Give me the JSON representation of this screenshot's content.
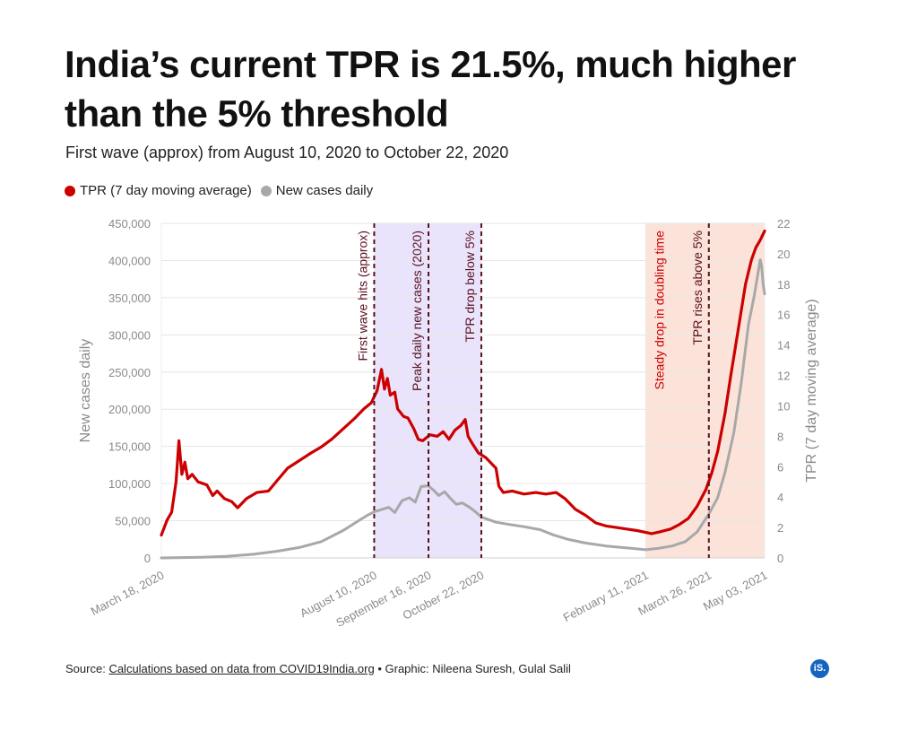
{
  "header": {
    "title": "India’s current TPR is 21.5%, much higher than the 5% threshold",
    "subtitle": "First wave (approx) from August 10, 2020 to October 22, 2020"
  },
  "legend": {
    "tpr_label": "TPR (7 day moving average)",
    "cases_label": "New cases daily"
  },
  "colors": {
    "tpr": "#cc0000",
    "cases": "#a8a8a8",
    "first_wave_band": "#e9e4fb",
    "second_wave_band": "#fbe3da",
    "event_line": "#5a1020"
  },
  "footer": {
    "source_prefix": "Source:",
    "source_link": "Calculations based on data from COVID19India.org",
    "credit": "• Graphic: Nileena Suresh, Gulal Salil",
    "logo": "iS."
  },
  "chart_data": {
    "type": "line",
    "x_type": "date",
    "x_range": [
      "2020-03-18",
      "2021-05-03"
    ],
    "x_ticks": [
      {
        "date": "2020-03-18",
        "label": "March 18, 2020"
      },
      {
        "date": "2020-08-10",
        "label": "August 10, 2020"
      },
      {
        "date": "2020-09-16",
        "label": "September 16, 2020"
      },
      {
        "date": "2020-10-22",
        "label": "October 22, 2020"
      },
      {
        "date": "2021-02-11",
        "label": "February 11, 2021"
      },
      {
        "date": "2021-03-26",
        "label": "March 26, 2021"
      },
      {
        "date": "2021-05-03",
        "label": "May 03, 2021"
      }
    ],
    "y_left": {
      "label": "New cases daily",
      "range": [
        0,
        450000
      ],
      "ticks": [
        0,
        50000,
        100000,
        150000,
        200000,
        250000,
        300000,
        350000,
        400000,
        450000
      ],
      "tick_labels": [
        "0",
        "50,000",
        "100,000",
        "150,000",
        "200,000",
        "250,000",
        "300,000",
        "350,000",
        "400,000",
        "450,000"
      ]
    },
    "y_right": {
      "label": "TPR (7 day moving average)",
      "range": [
        0,
        22
      ],
      "ticks": [
        0,
        2,
        4,
        6,
        8,
        10,
        12,
        14,
        16,
        18,
        20,
        22
      ]
    },
    "grid": true,
    "legend_position": "top-left",
    "bands": [
      {
        "start": "2020-08-10",
        "end": "2020-10-22",
        "color_key": "first_wave_band"
      },
      {
        "start": "2021-02-11",
        "end": "2021-05-03",
        "color_key": "second_wave_band"
      }
    ],
    "annotations": [
      {
        "date": "2020-08-10",
        "text": "First wave hits (approx)",
        "color": "#5a1020"
      },
      {
        "date": "2020-09-16",
        "text": "Peak daily new cases (2020)",
        "color": "#5a1020"
      },
      {
        "date": "2020-10-22",
        "text": "TPR drop below 5%",
        "color": "#5a1020"
      },
      {
        "date": "2021-02-11",
        "text": "Steady drop in doubling time",
        "color": "#cc0000",
        "no_line": true
      },
      {
        "date": "2021-03-26",
        "text": "TPR rises above 5%",
        "color": "#5a1020"
      }
    ],
    "series": [
      {
        "name": "TPR (7 day moving average)",
        "axis": "right",
        "color_key": "tpr",
        "points": [
          [
            "2020-03-18",
            1.5
          ],
          [
            "2020-03-22",
            2.5
          ],
          [
            "2020-03-25",
            3.0
          ],
          [
            "2020-03-28",
            5.0
          ],
          [
            "2020-03-30",
            7.7
          ],
          [
            "2020-04-01",
            5.5
          ],
          [
            "2020-04-03",
            6.3
          ],
          [
            "2020-04-05",
            5.2
          ],
          [
            "2020-04-08",
            5.5
          ],
          [
            "2020-04-12",
            5.0
          ],
          [
            "2020-04-18",
            4.8
          ],
          [
            "2020-04-22",
            4.1
          ],
          [
            "2020-04-25",
            4.4
          ],
          [
            "2020-04-30",
            3.9
          ],
          [
            "2020-05-05",
            3.7
          ],
          [
            "2020-05-09",
            3.3
          ],
          [
            "2020-05-15",
            3.9
          ],
          [
            "2020-05-22",
            4.3
          ],
          [
            "2020-05-30",
            4.4
          ],
          [
            "2020-06-05",
            5.1
          ],
          [
            "2020-06-12",
            5.9
          ],
          [
            "2020-06-20",
            6.4
          ],
          [
            "2020-06-28",
            6.9
          ],
          [
            "2020-07-05",
            7.3
          ],
          [
            "2020-07-12",
            7.8
          ],
          [
            "2020-07-20",
            8.5
          ],
          [
            "2020-07-28",
            9.2
          ],
          [
            "2020-08-03",
            9.8
          ],
          [
            "2020-08-08",
            10.2
          ],
          [
            "2020-08-12",
            11.0
          ],
          [
            "2020-08-15",
            12.4
          ],
          [
            "2020-08-17",
            11.1
          ],
          [
            "2020-08-19",
            11.8
          ],
          [
            "2020-08-21",
            10.7
          ],
          [
            "2020-08-24",
            10.9
          ],
          [
            "2020-08-26",
            9.8
          ],
          [
            "2020-08-30",
            9.3
          ],
          [
            "2020-09-02",
            9.2
          ],
          [
            "2020-09-06",
            8.5
          ],
          [
            "2020-09-09",
            7.8
          ],
          [
            "2020-09-12",
            7.7
          ],
          [
            "2020-09-17",
            8.1
          ],
          [
            "2020-09-22",
            8.0
          ],
          [
            "2020-09-26",
            8.3
          ],
          [
            "2020-09-30",
            7.8
          ],
          [
            "2020-10-04",
            8.4
          ],
          [
            "2020-10-08",
            8.7
          ],
          [
            "2020-10-11",
            9.1
          ],
          [
            "2020-10-13",
            8.0
          ],
          [
            "2020-10-16",
            7.5
          ],
          [
            "2020-10-20",
            6.9
          ],
          [
            "2020-10-25",
            6.6
          ],
          [
            "2020-10-29",
            6.2
          ],
          [
            "2020-11-01",
            5.9
          ],
          [
            "2020-11-03",
            4.7
          ],
          [
            "2020-11-06",
            4.3
          ],
          [
            "2020-11-12",
            4.4
          ],
          [
            "2020-11-20",
            4.2
          ],
          [
            "2020-11-28",
            4.3
          ],
          [
            "2020-12-05",
            4.2
          ],
          [
            "2020-12-12",
            4.3
          ],
          [
            "2020-12-18",
            3.9
          ],
          [
            "2020-12-25",
            3.2
          ],
          [
            "2021-01-01",
            2.8
          ],
          [
            "2021-01-08",
            2.3
          ],
          [
            "2021-01-15",
            2.1
          ],
          [
            "2021-01-22",
            2.0
          ],
          [
            "2021-01-29",
            1.9
          ],
          [
            "2021-02-05",
            1.8
          ],
          [
            "2021-02-10",
            1.7
          ],
          [
            "2021-02-15",
            1.6
          ],
          [
            "2021-02-20",
            1.7
          ],
          [
            "2021-02-28",
            1.9
          ],
          [
            "2021-03-06",
            2.2
          ],
          [
            "2021-03-12",
            2.6
          ],
          [
            "2021-03-18",
            3.4
          ],
          [
            "2021-03-24",
            4.5
          ],
          [
            "2021-03-28",
            5.6
          ],
          [
            "2021-04-01",
            7.0
          ],
          [
            "2021-04-06",
            9.5
          ],
          [
            "2021-04-10",
            12.0
          ],
          [
            "2021-04-15",
            15.0
          ],
          [
            "2021-04-20",
            18.0
          ],
          [
            "2021-04-24",
            19.6
          ],
          [
            "2021-04-27",
            20.4
          ],
          [
            "2021-04-30",
            20.9
          ],
          [
            "2021-05-03",
            21.5
          ]
        ]
      },
      {
        "name": "New cases daily",
        "axis": "left",
        "color_key": "cases",
        "points": [
          [
            "2020-03-18",
            0
          ],
          [
            "2020-04-15",
            1000
          ],
          [
            "2020-05-01",
            2000
          ],
          [
            "2020-05-20",
            5000
          ],
          [
            "2020-06-05",
            9000
          ],
          [
            "2020-06-20",
            14000
          ],
          [
            "2020-07-05",
            22000
          ],
          [
            "2020-07-20",
            37000
          ],
          [
            "2020-08-01",
            52000
          ],
          [
            "2020-08-06",
            58000
          ],
          [
            "2020-08-10",
            62000
          ],
          [
            "2020-08-15",
            65000
          ],
          [
            "2020-08-20",
            68000
          ],
          [
            "2020-08-24",
            61000
          ],
          [
            "2020-08-29",
            77000
          ],
          [
            "2020-09-03",
            81000
          ],
          [
            "2020-09-07",
            75000
          ],
          [
            "2020-09-11",
            96000
          ],
          [
            "2020-09-16",
            97000
          ],
          [
            "2020-09-20",
            90000
          ],
          [
            "2020-09-23",
            84000
          ],
          [
            "2020-09-27",
            89000
          ],
          [
            "2020-10-01",
            80000
          ],
          [
            "2020-10-05",
            72000
          ],
          [
            "2020-10-09",
            74000
          ],
          [
            "2020-10-14",
            68000
          ],
          [
            "2020-10-18",
            62000
          ],
          [
            "2020-10-22",
            55000
          ],
          [
            "2020-11-01",
            48000
          ],
          [
            "2020-11-10",
            45000
          ],
          [
            "2020-11-20",
            42000
          ],
          [
            "2020-12-01",
            38000
          ],
          [
            "2020-12-10",
            31000
          ],
          [
            "2020-12-20",
            25000
          ],
          [
            "2021-01-01",
            20000
          ],
          [
            "2021-01-15",
            16000
          ],
          [
            "2021-02-01",
            13000
          ],
          [
            "2021-02-11",
            11000
          ],
          [
            "2021-02-20",
            13000
          ],
          [
            "2021-03-01",
            16000
          ],
          [
            "2021-03-10",
            22000
          ],
          [
            "2021-03-18",
            35000
          ],
          [
            "2021-03-26",
            59000
          ],
          [
            "2021-04-01",
            81000
          ],
          [
            "2021-04-06",
            115000
          ],
          [
            "2021-04-12",
            168000
          ],
          [
            "2021-04-17",
            234000
          ],
          [
            "2021-04-22",
            314000
          ],
          [
            "2021-04-26",
            353000
          ],
          [
            "2021-04-30",
            401000
          ],
          [
            "2021-05-01",
            392000
          ],
          [
            "2021-05-02",
            368000
          ],
          [
            "2021-05-03",
            355000
          ]
        ]
      }
    ]
  }
}
